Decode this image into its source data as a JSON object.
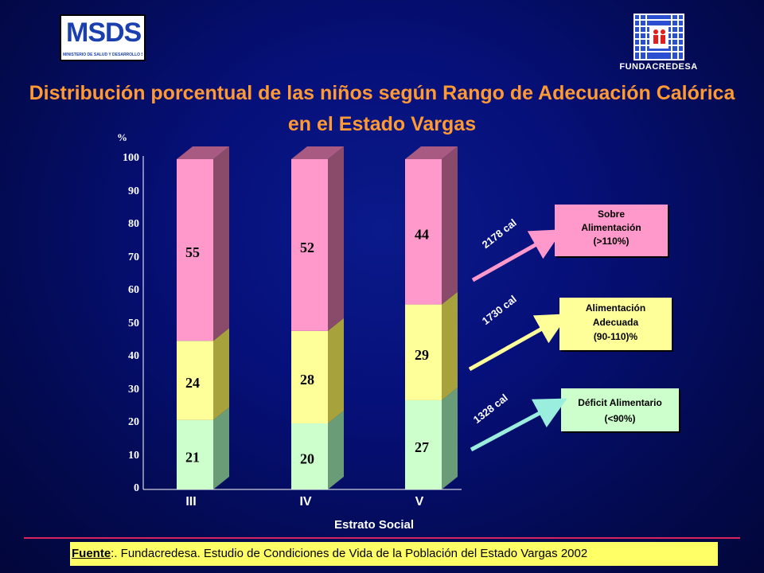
{
  "header": {
    "msds_logo_text": "MSDS",
    "msds_logo_subtitle": "MINISTERIO DE SALUD Y DESARROLLO SOCIAL",
    "funda_logo_text": "FUNDACREDESA"
  },
  "title_line1": "Distribución porcentual de las niños según Rango de Adecuación Calórica",
  "title_line2": "en el Estado Vargas",
  "colors": {
    "deficit": "#ccffcc",
    "adecuada": "#ffff99",
    "sobre": "#ff99cc",
    "title": "#ff9933",
    "footer_bg": "#ffff66"
  },
  "chart_data": {
    "type": "bar",
    "stacked": true,
    "title": "Distribución porcentual de las niños según Rango de Adecuación Calórica en el Estado Vargas",
    "ylabel": "%",
    "xlabel": "Estrato Social",
    "ylim": [
      0,
      100
    ],
    "yticks": [
      "0",
      "10",
      "20",
      "30",
      "40",
      "50",
      "60",
      "70",
      "80",
      "90",
      "100"
    ],
    "categories": [
      "III",
      "IV",
      "V"
    ],
    "series": [
      {
        "name": "Déficit Alimentario (<90%)",
        "values": [
          21,
          20,
          27
        ]
      },
      {
        "name": "Alimentación Adecuada (90-110)%",
        "values": [
          24,
          28,
          29
        ]
      },
      {
        "name": "Sobre Alimentación (>110%)",
        "values": [
          55,
          52,
          44
        ]
      }
    ],
    "legend_placement": "right"
  },
  "legend": {
    "sobre": {
      "line1": "Sobre",
      "line2": "Alimentación",
      "line3": "(>110%)",
      "cal": "2178 cal"
    },
    "adecuada": {
      "line1": "Alimentación",
      "line2": "Adecuada",
      "line3": "(90-110)%",
      "cal": "1730 cal"
    },
    "deficit": {
      "line1": "Déficit Alimentario",
      "line2": "(<90%)",
      "cal": "1328 cal"
    }
  },
  "footer": {
    "label": "Fuente",
    "text": ":. Fundacredesa. Estudio de Condiciones de Vida de la Población del Estado Vargas 2002"
  }
}
